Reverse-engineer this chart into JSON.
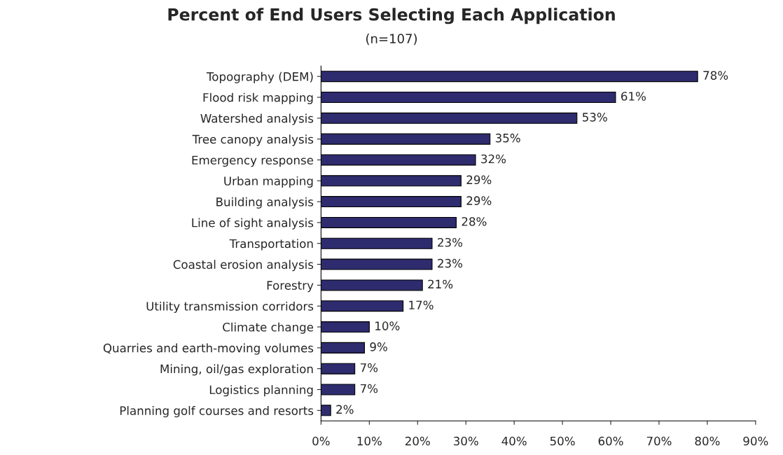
{
  "chart_data": {
    "type": "bar",
    "orientation": "horizontal",
    "title": "Percent of End Users Selecting Each Application",
    "subtitle": "(n=107)",
    "categories": [
      "Topography (DEM)",
      "Flood risk mapping",
      "Watershed analysis",
      "Tree canopy analysis",
      "Emergency response",
      "Urban mapping",
      "Building analysis",
      "Line of sight analysis",
      "Transportation",
      "Coastal erosion analysis",
      "Forestry",
      "Utility transmission corridors",
      "Climate change",
      "Quarries and earth-moving volumes",
      "Mining, oil/gas exploration",
      "Logistics planning",
      "Planning golf courses and resorts"
    ],
    "values": [
      78,
      61,
      53,
      35,
      32,
      29,
      29,
      28,
      23,
      23,
      21,
      17,
      10,
      9,
      7,
      7,
      2
    ],
    "value_labels": [
      "78%",
      "61%",
      "53%",
      "35%",
      "32%",
      "29%",
      "29%",
      "28%",
      "23%",
      "23%",
      "21%",
      "17%",
      "10%",
      "9%",
      "7%",
      "7%",
      "2%"
    ],
    "color": "#2e2b6e",
    "xlim": [
      0,
      90
    ],
    "xticks": [
      {
        "value": 0,
        "label": "0%"
      },
      {
        "value": 10,
        "label": "10%"
      },
      {
        "value": 20,
        "label": "20%"
      },
      {
        "value": 30,
        "label": "30%"
      },
      {
        "value": 40,
        "label": "40%"
      },
      {
        "value": 50,
        "label": "50%"
      },
      {
        "value": 60,
        "label": "60%"
      },
      {
        "value": 70,
        "label": "70%"
      },
      {
        "value": 80,
        "label": "80%"
      },
      {
        "value": 90,
        "label": "90%"
      }
    ],
    "grid": false,
    "legend": false
  }
}
